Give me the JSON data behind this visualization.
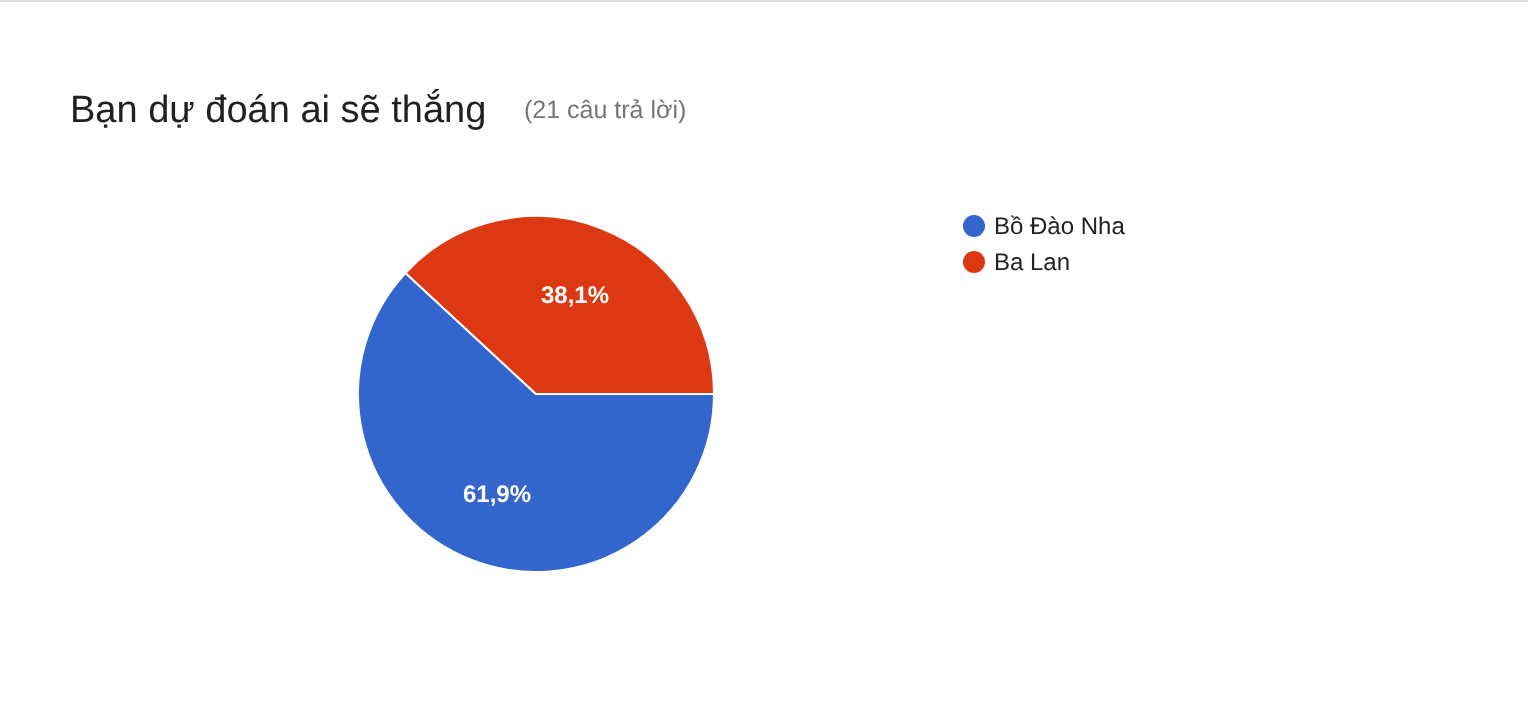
{
  "chart_data": {
    "type": "pie",
    "title": "Bạn dự đoán ai sẽ thắng",
    "subtitle": "(21 câu trả lời)",
    "categories": [
      "Bồ Đào Nha",
      "Ba Lan"
    ],
    "values": [
      61.9,
      38.1
    ],
    "colors": [
      "#3366cc",
      "#dc3912"
    ],
    "value_labels": [
      "61,9%",
      "38,1%"
    ],
    "legend": "right"
  }
}
